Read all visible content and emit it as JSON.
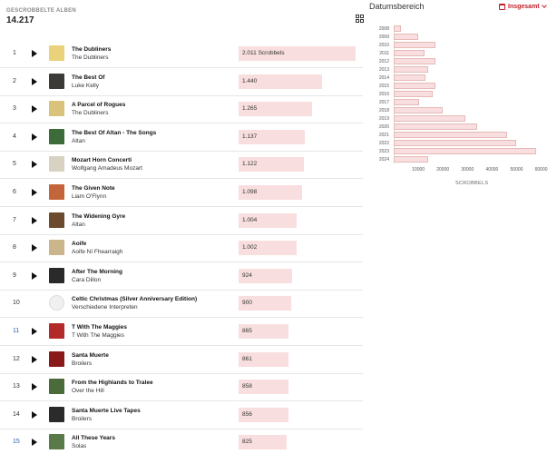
{
  "header": {
    "label": "GESCROBBELTE ALBEN",
    "count": "14.217"
  },
  "view_toggle_icon": "grid-icon",
  "albums": [
    {
      "rank": "1",
      "title": "The Dubliners",
      "artist": "The Dubliners",
      "scrobbles": "2.011 Scrobbels",
      "value": 2011,
      "thumb_color": "#e9d27a",
      "rank_blue": false,
      "has_play": true
    },
    {
      "rank": "2",
      "title": "The Best Of",
      "artist": "Luke Kelly",
      "scrobbles": "1.440",
      "value": 1440,
      "thumb_color": "#3c3a36",
      "rank_blue": false,
      "has_play": true
    },
    {
      "rank": "3",
      "title": "A Parcel of Rogues",
      "artist": "The Dubliners",
      "scrobbles": "1.265",
      "value": 1265,
      "thumb_color": "#d9c37a",
      "rank_blue": false,
      "has_play": true
    },
    {
      "rank": "4",
      "title": "The Best Of Altan - The Songs",
      "artist": "Altan",
      "scrobbles": "1.137",
      "value": 1137,
      "thumb_color": "#3d6b3a",
      "rank_blue": false,
      "has_play": true
    },
    {
      "rank": "5",
      "title": "Mozart Horn Concerti",
      "artist": "Wolfgang Amadeus Mozart",
      "scrobbles": "1.122",
      "value": 1122,
      "thumb_color": "#d8d2c3",
      "rank_blue": false,
      "has_play": true
    },
    {
      "rank": "6",
      "title": "The Given Note",
      "artist": "Liam O'Flynn",
      "scrobbles": "1.098",
      "value": 1098,
      "thumb_color": "#c3643a",
      "rank_blue": false,
      "has_play": true
    },
    {
      "rank": "7",
      "title": "The Widening Gyre",
      "artist": "Altan",
      "scrobbles": "1.004",
      "value": 1004,
      "thumb_color": "#6b4a2d",
      "rank_blue": false,
      "has_play": true
    },
    {
      "rank": "8",
      "title": "Aoife",
      "artist": "Aoife Ní Fhearraigh",
      "scrobbles": "1.002",
      "value": 1002,
      "thumb_color": "#cbb58a",
      "rank_blue": false,
      "has_play": true
    },
    {
      "rank": "9",
      "title": "After The Morning",
      "artist": "Cara Dillon",
      "scrobbles": "924",
      "value": 924,
      "thumb_color": "#2a2a2a",
      "rank_blue": false,
      "has_play": true
    },
    {
      "rank": "10",
      "title": "Celtic Christmas (Silver Anniversary Edition)",
      "artist": "Verschiedene Interpreten",
      "scrobbles": "900",
      "value": 900,
      "thumb_color": "",
      "rank_blue": false,
      "has_play": false
    },
    {
      "rank": "11",
      "title": "T With The Maggies",
      "artist": "T With The Maggies",
      "scrobbles": "865",
      "value": 865,
      "thumb_color": "#b22a2a",
      "rank_blue": true,
      "has_play": true
    },
    {
      "rank": "12",
      "title": "Santa Muerte",
      "artist": "Broilers",
      "scrobbles": "861",
      "value": 861,
      "thumb_color": "#8a1a1a",
      "rank_blue": false,
      "has_play": true
    },
    {
      "rank": "13",
      "title": "From the Highlands to Tralee",
      "artist": "Over the Hill",
      "scrobbles": "858",
      "value": 858,
      "thumb_color": "#4b6b3a",
      "rank_blue": false,
      "has_play": true
    },
    {
      "rank": "14",
      "title": "Santa Muerte Live Tapes",
      "artist": "Broilers",
      "scrobbles": "856",
      "value": 856,
      "thumb_color": "#2b2b2b",
      "rank_blue": false,
      "has_play": true
    },
    {
      "rank": "15",
      "title": "All These Years",
      "artist": "Solas",
      "scrobbles": "825",
      "value": 825,
      "thumb_color": "#5a7a4a",
      "rank_blue": true,
      "has_play": true
    }
  ],
  "right_panel": {
    "title": "Datumsbereich",
    "range_label": "Insgesamt",
    "accent_color": "#c0202a"
  },
  "chart_data": {
    "type": "bar",
    "orientation": "horizontal",
    "categories": [
      "2008",
      "2009",
      "2010",
      "2011",
      "2012",
      "2013",
      "2014",
      "2015",
      "2016",
      "2017",
      "2018",
      "2019",
      "2020",
      "2021",
      "2022",
      "2023",
      "2024"
    ],
    "values": [
      3000,
      10000,
      17000,
      12500,
      17000,
      14000,
      13000,
      17000,
      16000,
      10500,
      20000,
      29000,
      34000,
      46000,
      50000,
      58000,
      14000
    ],
    "xlabel": "SCROBBELS",
    "xticks": [
      "10000",
      "20000",
      "30000",
      "40000",
      "50000",
      "60000"
    ],
    "xlim": [
      0,
      62000
    ],
    "bar_color": "#f8dede"
  }
}
